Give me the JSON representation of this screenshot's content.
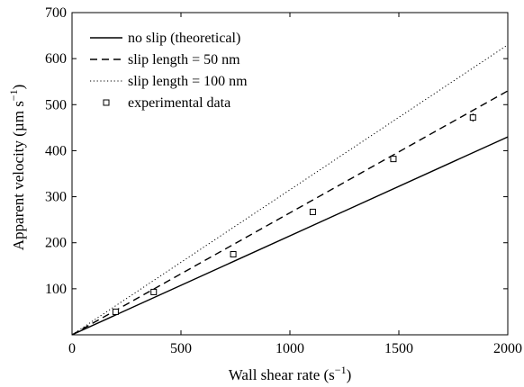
{
  "chart_data": {
    "type": "line",
    "xlabel": "Wall shear rate (s",
    "xlabel_exp": "−1",
    "xlabel_tail": ")",
    "ylabel": "Apparent velocity (µm s",
    "ylabel_exp": "−1",
    "ylabel_tail": ")",
    "xlim": [
      0,
      2000
    ],
    "ylim": [
      0,
      700
    ],
    "xticks": [
      0,
      500,
      1000,
      1500,
      2000
    ],
    "yticks": [
      100,
      200,
      300,
      400,
      500,
      600,
      700
    ],
    "grid": false,
    "legend_position": "top-left",
    "series": [
      {
        "name": "no slip (theoretical)",
        "style": "solid",
        "color": "#000000",
        "x": [
          0,
          2000
        ],
        "y": [
          0,
          430
        ]
      },
      {
        "name": "slip length = 50 nm",
        "style": "dashed",
        "color": "#000000",
        "x": [
          0,
          2000
        ],
        "y": [
          0,
          530
        ]
      },
      {
        "name": "slip length = 100 nm",
        "style": "dotted",
        "color": "#000000",
        "x": [
          0,
          2000
        ],
        "y": [
          0,
          630
        ]
      },
      {
        "name": "experimental data",
        "style": "markers",
        "color": "#000000",
        "x": [
          200,
          375,
          740,
          1105,
          1475,
          1840
        ],
        "y": [
          50,
          93,
          175,
          267,
          382,
          472
        ],
        "error": [
          4,
          4,
          6,
          5,
          6,
          9
        ]
      }
    ]
  }
}
